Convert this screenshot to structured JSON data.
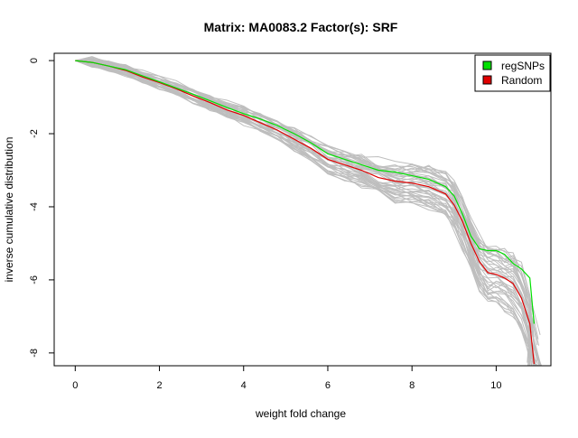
{
  "chart_data": {
    "type": "line",
    "title": "Matrix: MA0083.2 Factor(s): SRF",
    "xlabel": "weight fold change",
    "ylabel": "inverse cumulative distribution",
    "xlim": [
      -0.5,
      11.3
    ],
    "ylim": [
      -8.35,
      0.2
    ],
    "x_ticks": [
      0,
      2,
      4,
      6,
      8,
      10
    ],
    "y_ticks": [
      0,
      -2,
      -4,
      -6,
      -8
    ],
    "legend": {
      "placement": "top-right",
      "entries": [
        "regSNPs",
        "Random"
      ]
    },
    "grid": false,
    "series": [
      {
        "name": "regSNPs",
        "color": "#00e000",
        "x": [
          0,
          0.4,
          0.8,
          1.2,
          1.6,
          2.0,
          2.4,
          2.8,
          3.2,
          3.6,
          4.0,
          4.4,
          4.8,
          5.2,
          5.6,
          6.0,
          6.4,
          6.8,
          7.2,
          7.6,
          8.0,
          8.4,
          8.8,
          9.0,
          9.2,
          9.4,
          9.6,
          9.8,
          10.0,
          10.2,
          10.4,
          10.6,
          10.8,
          10.9
        ],
        "values": [
          0,
          -0.05,
          -0.15,
          -0.25,
          -0.42,
          -0.58,
          -0.75,
          -0.92,
          -1.1,
          -1.28,
          -1.45,
          -1.6,
          -1.78,
          -2.0,
          -2.25,
          -2.55,
          -2.7,
          -2.85,
          -3.0,
          -3.05,
          -3.15,
          -3.25,
          -3.45,
          -3.7,
          -4.2,
          -4.8,
          -5.15,
          -5.2,
          -5.2,
          -5.3,
          -5.55,
          -5.7,
          -5.95,
          -7.2
        ]
      },
      {
        "name": "Random",
        "color": "#e00000",
        "x": [
          0,
          0.4,
          0.8,
          1.2,
          1.6,
          2.0,
          2.4,
          2.8,
          3.2,
          3.6,
          4.0,
          4.4,
          4.8,
          5.2,
          5.6,
          6.0,
          6.4,
          6.8,
          7.2,
          7.6,
          8.0,
          8.4,
          8.8,
          9.0,
          9.2,
          9.4,
          9.6,
          9.8,
          10.0,
          10.2,
          10.4,
          10.6,
          10.8,
          10.9
        ],
        "values": [
          0,
          -0.05,
          -0.15,
          -0.27,
          -0.45,
          -0.6,
          -0.77,
          -0.97,
          -1.15,
          -1.35,
          -1.5,
          -1.7,
          -1.9,
          -2.15,
          -2.4,
          -2.7,
          -2.85,
          -3.0,
          -3.2,
          -3.3,
          -3.35,
          -3.45,
          -3.65,
          -3.95,
          -4.4,
          -5.0,
          -5.5,
          -5.8,
          -5.85,
          -5.95,
          -6.1,
          -6.5,
          -7.2,
          -8.3
        ]
      }
    ]
  }
}
